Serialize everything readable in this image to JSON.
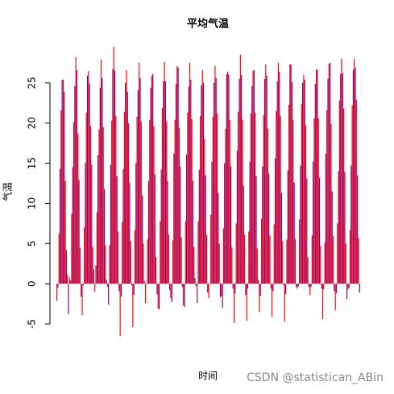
{
  "chart_data": {
    "type": "bar",
    "title": "平均气温",
    "y_label": "气温",
    "x_label": "时间",
    "watermark": "CSDN @statistican_ABin",
    "colors": [
      "red",
      "purple"
    ],
    "ylim": [
      -6.6,
      29.7
    ],
    "yticks": [
      -5,
      0,
      5,
      10,
      15,
      20,
      25
    ],
    "values": [
      -2.1,
      -0.5,
      6.2,
      14.3,
      21.6,
      25.4,
      25.4,
      23.9,
      12.8,
      4.2,
      1.1,
      -3.8,
      0.8,
      0.4,
      8.7,
      14.5,
      20.1,
      24.6,
      28.2,
      26.6,
      18.7,
      12.9,
      4.5,
      -1.6,
      -3.9,
      -0.2,
      7.0,
      15.0,
      21.3,
      25.9,
      26.5,
      24.9,
      19.6,
      14.8,
      4.6,
      1.8,
      -1.0,
      2.3,
      8.9,
      16.0,
      19.2,
      24.4,
      27.9,
      25.6,
      19.5,
      11.8,
      4.8,
      0.5,
      -0.4,
      -2.6,
      4.8,
      14.8,
      20.3,
      26.7,
      29.5,
      26.5,
      20.9,
      13.4,
      6.5,
      -0.9,
      -6.5,
      -1.6,
      7.7,
      14.3,
      21.4,
      25.0,
      26.6,
      23.9,
      20.0,
      12.6,
      5.3,
      -0.2,
      -5.4,
      -1.4,
      6.7,
      15.0,
      20.8,
      24.1,
      27.5,
      25.6,
      20.2,
      11.0,
      5.0,
      0.3,
      -2.4,
      0.1,
      5.5,
      12.8,
      20.4,
      24.4,
      25.9,
      26.1,
      19.6,
      13.6,
      3.3,
      -1.3,
      -3.1,
      -3.2,
      7.8,
      14.2,
      21.9,
      25.2,
      27.6,
      25.2,
      20.2,
      12.8,
      6.1,
      -0.8,
      -1.8,
      -2.3,
      5.4,
      16.2,
      20.4,
      24.9,
      27.1,
      26.9,
      19.4,
      14.6,
      5.8,
      -0.4,
      -2.7,
      -2.9,
      7.8,
      16.1,
      21.3,
      24.5,
      27.5,
      25.4,
      20.5,
      12.8,
      4.6,
      0.7,
      -0.3,
      -2.4,
      7.8,
      14.2,
      20.9,
      24.7,
      26.6,
      25.0,
      18.0,
      13.5,
      6.1,
      -1.1,
      -1.8,
      0.1,
      8.6,
      15.2,
      20.8,
      25.0,
      27.1,
      25.6,
      21.2,
      11.3,
      5.0,
      -1.7,
      -1.5,
      -3.0,
      6.9,
      15.0,
      19.3,
      26.1,
      26.4,
      26.0,
      20.4,
      14.6,
      4.5,
      -0.6,
      -4.9,
      -1.2,
      7.5,
      16.6,
      21.4,
      25.5,
      28.5,
      26.0,
      20.4,
      12.2,
      6.1,
      -1.4,
      -4.6,
      -0.6,
      6.5,
      15.2,
      21.2,
      24.6,
      26.5,
      26.6,
      21.3,
      13.4,
      4.4,
      0.5,
      -3.5,
      -1.5,
      8.1,
      14.6,
      21.0,
      25.5,
      27.3,
      25.9,
      19.3,
      13.7,
      6.0,
      -0.6,
      -4.1,
      -0.9,
      7.4,
      15.6,
      21.5,
      25.2,
      27.5,
      26.4,
      20.9,
      11.3,
      5.3,
      -0.2,
      -4.7,
      -1.3,
      5.5,
      14.1,
      22.3,
      27.3,
      27.3,
      25.1,
      20.4,
      12.6,
      5.6,
      -0.4,
      -0.6,
      -0.3,
      8.0,
      14.7,
      22.4,
      25.0,
      26.0,
      25.4,
      19.7,
      13.1,
      3.3,
      -0.4,
      -1.4,
      -0.4,
      6.0,
      15.2,
      20.6,
      24.9,
      26.7,
      26.6,
      20.6,
      13.2,
      4.7,
      -0.6,
      -4.4,
      -0.7,
      5.1,
      16.2,
      21.6,
      25.5,
      27.4,
      27.5,
      19.9,
      11.5,
      5.9,
      -0.9,
      -3.3,
      -1.2,
      7.5,
      14.0,
      22.8,
      26.1,
      28.0,
      26.2,
      21.8,
      13.9,
      5.0,
      -1.9,
      -0.7,
      -0.5,
      6.7,
      14.7,
      22.2,
      26.6,
      28.0,
      26.9,
      22.9,
      13.5,
      5.7,
      -1.1
    ]
  }
}
